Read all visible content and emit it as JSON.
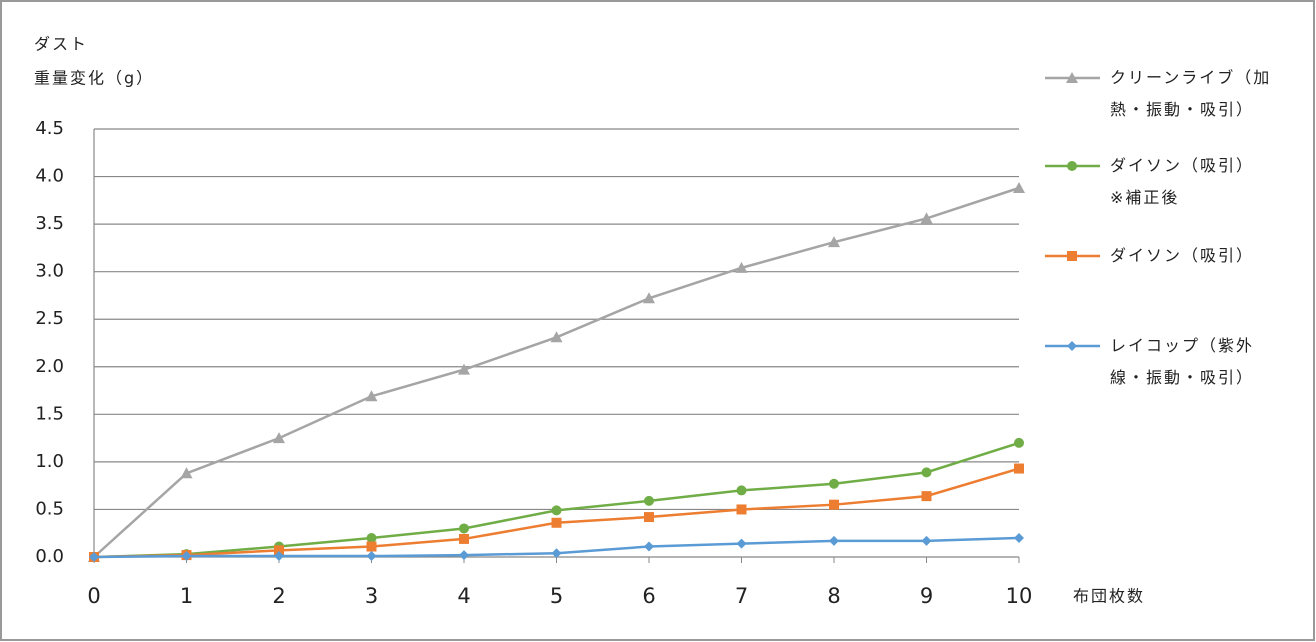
{
  "chart_data": {
    "type": "line",
    "y_label": [
      "ダスト",
      "重量変化（g）"
    ],
    "x_label": "布団枚数",
    "x": [
      0,
      1,
      2,
      3,
      4,
      5,
      6,
      7,
      8,
      9,
      10
    ],
    "xlim": [
      0,
      10
    ],
    "xticks": [
      0,
      1,
      2,
      3,
      4,
      5,
      6,
      7,
      8,
      9,
      10
    ],
    "ylim": [
      0,
      4.5
    ],
    "yticks": [
      {
        "value": 0,
        "label": "0.0"
      },
      0.5,
      {
        "value": 1,
        "label": "1.0"
      },
      1.5,
      {
        "value": 2,
        "label": "2.0"
      },
      2.5,
      {
        "value": 3,
        "label": "3.0"
      },
      3.5,
      {
        "value": 4,
        "label": "4.0"
      },
      4.5
    ],
    "grid": true,
    "legend": "right",
    "series": [
      {
        "name": "クリーンライブ（加熱・振動・吸引）",
        "color": "#a5a5a5",
        "marker": "triangle",
        "values": [
          0,
          0.88,
          1.25,
          1.69,
          1.97,
          2.31,
          2.72,
          3.04,
          3.31,
          3.56,
          3.88
        ]
      },
      {
        "name": "ダイソン（吸引）\n※補正後",
        "color": "#70ad47",
        "marker": "circle",
        "values": [
          0,
          0.03,
          0.11,
          0.2,
          0.3,
          0.49,
          0.59,
          0.7,
          0.77,
          0.89,
          1.2
        ]
      },
      {
        "name": "ダイソン（吸引）",
        "color": "#ed7d31",
        "marker": "square",
        "values": [
          0,
          0.02,
          0.07,
          0.11,
          0.19,
          0.36,
          0.42,
          0.5,
          0.55,
          0.64,
          0.93
        ]
      },
      {
        "name": "レイコップ（紫外線・振動・吸引）",
        "color": "#5b9bd5",
        "marker": "diamond",
        "values": [
          0,
          0.01,
          0.01,
          0.01,
          0.02,
          0.04,
          0.11,
          0.14,
          0.17,
          0.17,
          0.2
        ]
      }
    ]
  }
}
